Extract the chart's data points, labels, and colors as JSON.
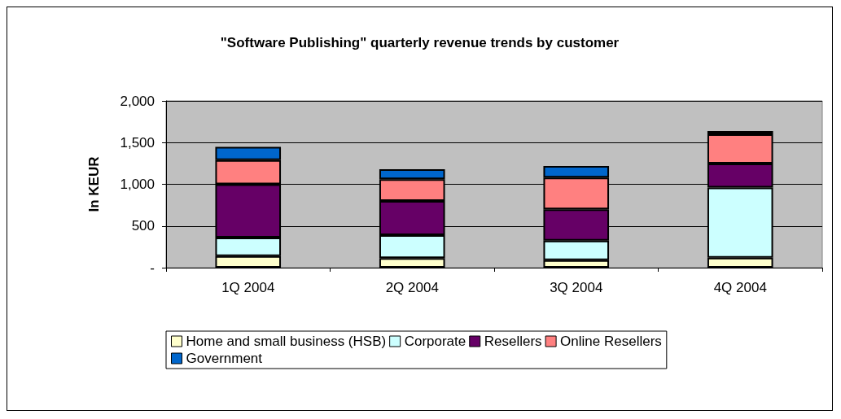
{
  "chart_data": {
    "type": "bar",
    "title": "\"Software Publishing\" quarterly revenue trends by customer",
    "ylabel": "In KEUR",
    "categories": [
      "1Q 2004",
      "2Q 2004",
      "3Q 2004",
      "4Q 2004"
    ],
    "stacked": true,
    "series": [
      {
        "name": "Home and small business (HSB)",
        "color": "#ffffcc",
        "values": [
          140,
          115,
          90,
          120
        ]
      },
      {
        "name": "Corporate",
        "color": "#ccffff",
        "values": [
          220,
          275,
          235,
          840
        ]
      },
      {
        "name": "Resellers",
        "color": "#660066",
        "values": [
          640,
          410,
          375,
          290
        ]
      },
      {
        "name": "Online Resellers",
        "color": "#ff8080",
        "values": [
          290,
          260,
          380,
          350
        ]
      },
      {
        "name": "Government",
        "color": "#0066cc",
        "values": [
          160,
          120,
          140,
          40
        ]
      }
    ],
    "ylim": [
      0,
      2000
    ],
    "yticks": [
      {
        "value": 0,
        "label": "-"
      },
      {
        "value": 500,
        "label": "500"
      },
      {
        "value": 1000,
        "label": "1,000"
      },
      {
        "value": 1500,
        "label": "1,500"
      },
      {
        "value": 2000,
        "label": "2,000"
      }
    ],
    "grid": "y",
    "legend": "bottom"
  }
}
